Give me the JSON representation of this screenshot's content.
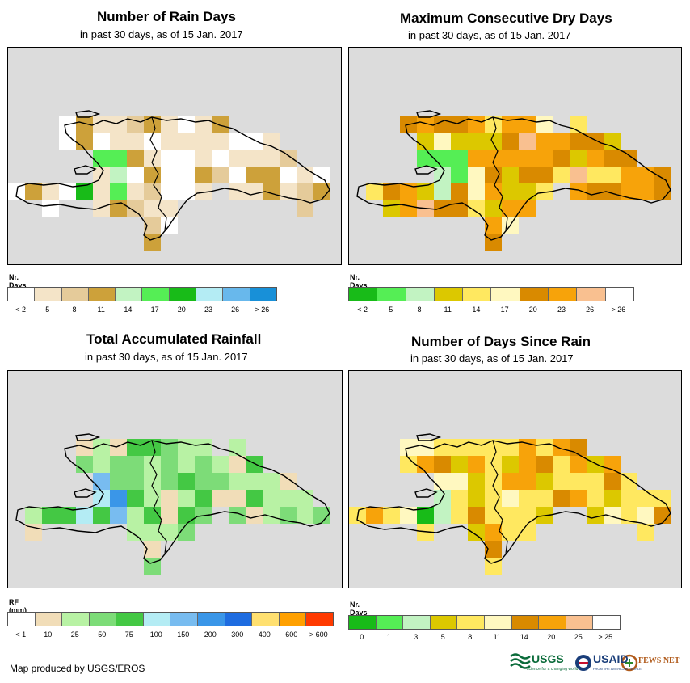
{
  "panels": [
    {
      "id": "rain-days",
      "title": "Number of Rain Days",
      "subtitle": "in past 30 days, as of 15 Jan. 2017",
      "units": "Nr. Days",
      "legend_colors": [
        "#ffffff",
        "#f4e4c8",
        "#e5cb9a",
        "#cda13a",
        "#c2f3c2",
        "#55ee55",
        "#18bb18",
        "#b4ecf4",
        "#68b8ec",
        "#1890d8"
      ],
      "legend_labels": [
        "< 2",
        "5",
        "8",
        "11",
        "14",
        "17",
        "20",
        "23",
        "26",
        "> 26"
      ],
      "highlight_colors": [
        "#55ee55",
        "#18bb18",
        "#cda13a",
        "#c2f3c2"
      ]
    },
    {
      "id": "dry-days",
      "title": "Maximum Consecutive Dry Days",
      "subtitle": "in past 30 days, as of 15 Jan. 2017",
      "units": "Nr. Days",
      "legend_colors": [
        "#18bb18",
        "#55ee55",
        "#c2f3c2",
        "#dcc800",
        "#ffe860",
        "#fff8c0",
        "#d98a00",
        "#f7a30a",
        "#f9c090",
        "#ffffff"
      ],
      "legend_labels": [
        "< 2",
        "5",
        "8",
        "11",
        "14",
        "17",
        "20",
        "23",
        "26",
        "> 26"
      ],
      "highlight_colors": [
        "#55ee55",
        "#18bb18",
        "#f9c090",
        "#fff8c0"
      ]
    },
    {
      "id": "total-rainfall",
      "title": "Total Accumulated Rainfall",
      "subtitle": "in past 30 days, as of 15 Jan. 2017",
      "units": "RF (mm)",
      "legend_colors": [
        "#ffffff",
        "#f1ddb8",
        "#b8f2a4",
        "#7ddc78",
        "#44c844",
        "#b4ecf4",
        "#78bcf0",
        "#3a96e8",
        "#1e6ce0",
        "#ffe070",
        "#ffa000",
        "#ff3a00"
      ],
      "legend_labels": [
        "< 1",
        "10",
        "25",
        "50",
        "75",
        "100",
        "150",
        "200",
        "300",
        "400",
        "600",
        "> 600"
      ],
      "highlight_colors": [
        "#b4ecf4",
        "#3a96e8",
        "#78bcf0",
        "#ffffff"
      ]
    },
    {
      "id": "days-since-rain",
      "title": "Number of Days Since Rain",
      "subtitle": "in past 30 days, as of 15 Jan. 2017",
      "units": "Nr. Days",
      "legend_colors": [
        "#18bb18",
        "#55ee55",
        "#c2f3c2",
        "#dcc800",
        "#ffe860",
        "#fff8c0",
        "#d98a00",
        "#f7a30a",
        "#f9c090",
        "#ffffff"
      ],
      "legend_labels": [
        "0",
        "1",
        "3",
        "5",
        "8",
        "11",
        "14",
        "20",
        "25",
        "> 25"
      ],
      "highlight_colors": [
        "#55ee55",
        "#18bb18",
        "#f9c090",
        "#f7a30a"
      ]
    }
  ],
  "footer": "Map produced by USGS/EROS",
  "logos": {
    "usgs": "USGS",
    "usgs_tagline": "science for a changing world",
    "usaid": "USAID",
    "usaid_tagline": "FROM THE AMERICAN PEOPLE",
    "fewsnet": "FEWS NET"
  }
}
